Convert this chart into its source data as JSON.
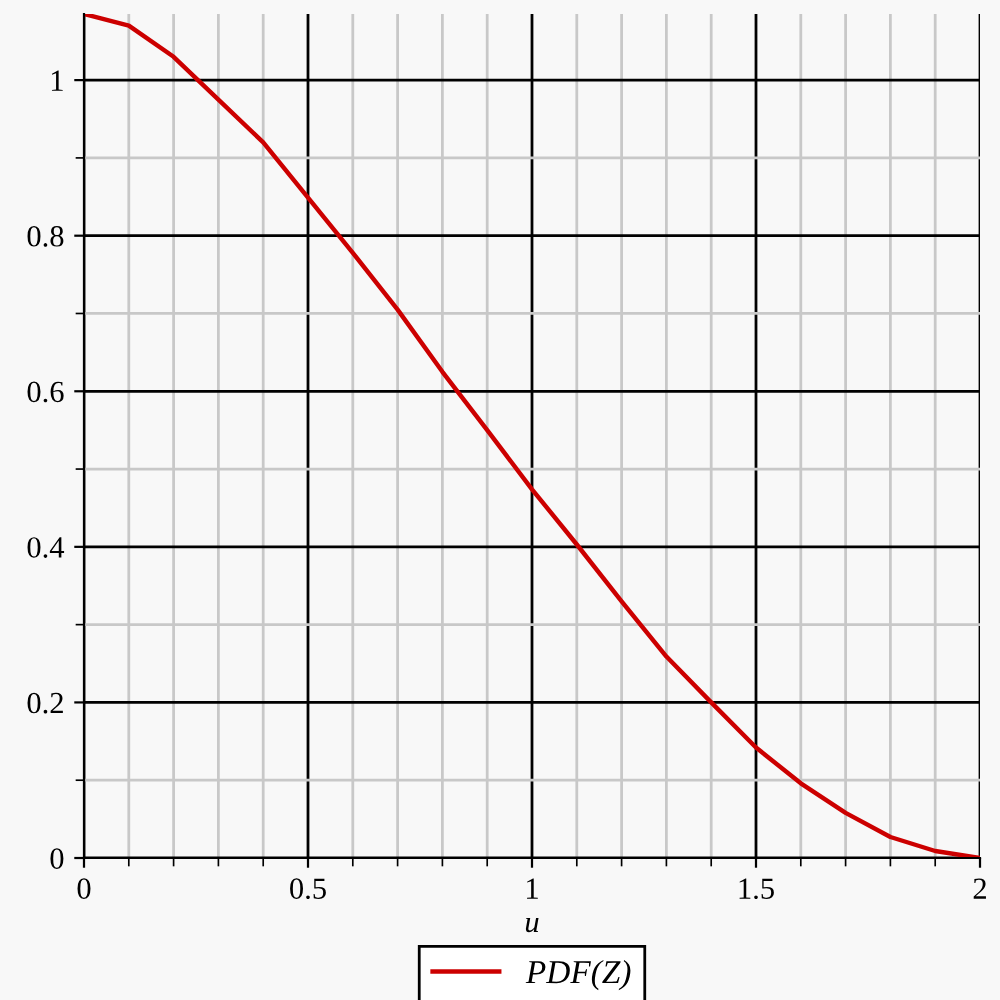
{
  "chart_data": {
    "type": "line",
    "xlabel": "u",
    "x": [
      0,
      0.1,
      0.2,
      0.3,
      0.4,
      0.5,
      0.6,
      0.7,
      0.8,
      0.9,
      1.0,
      1.1,
      1.2,
      1.3,
      1.4,
      1.5,
      1.6,
      1.7,
      1.8,
      1.9,
      2.0
    ],
    "series": [
      {
        "name": "PDF(Z)",
        "color": "#cc0000",
        "values": [
          1.085,
          1.07,
          1.03,
          0.975,
          0.92,
          0.849,
          0.778,
          0.705,
          0.625,
          0.55,
          0.474,
          0.403,
          0.33,
          0.259,
          0.2,
          0.142,
          0.096,
          0.058,
          0.027,
          0.009,
          0
        ]
      }
    ],
    "xlim": [
      0,
      2
    ],
    "ylim": [
      0,
      1.085
    ],
    "xticks": [
      0,
      0.5,
      1,
      1.5,
      2
    ],
    "yticks": [
      0,
      0.2,
      0.4,
      0.6,
      0.8,
      1
    ],
    "grid": true,
    "legend": "bottom",
    "marker": "none",
    "line_style": "solid"
  }
}
